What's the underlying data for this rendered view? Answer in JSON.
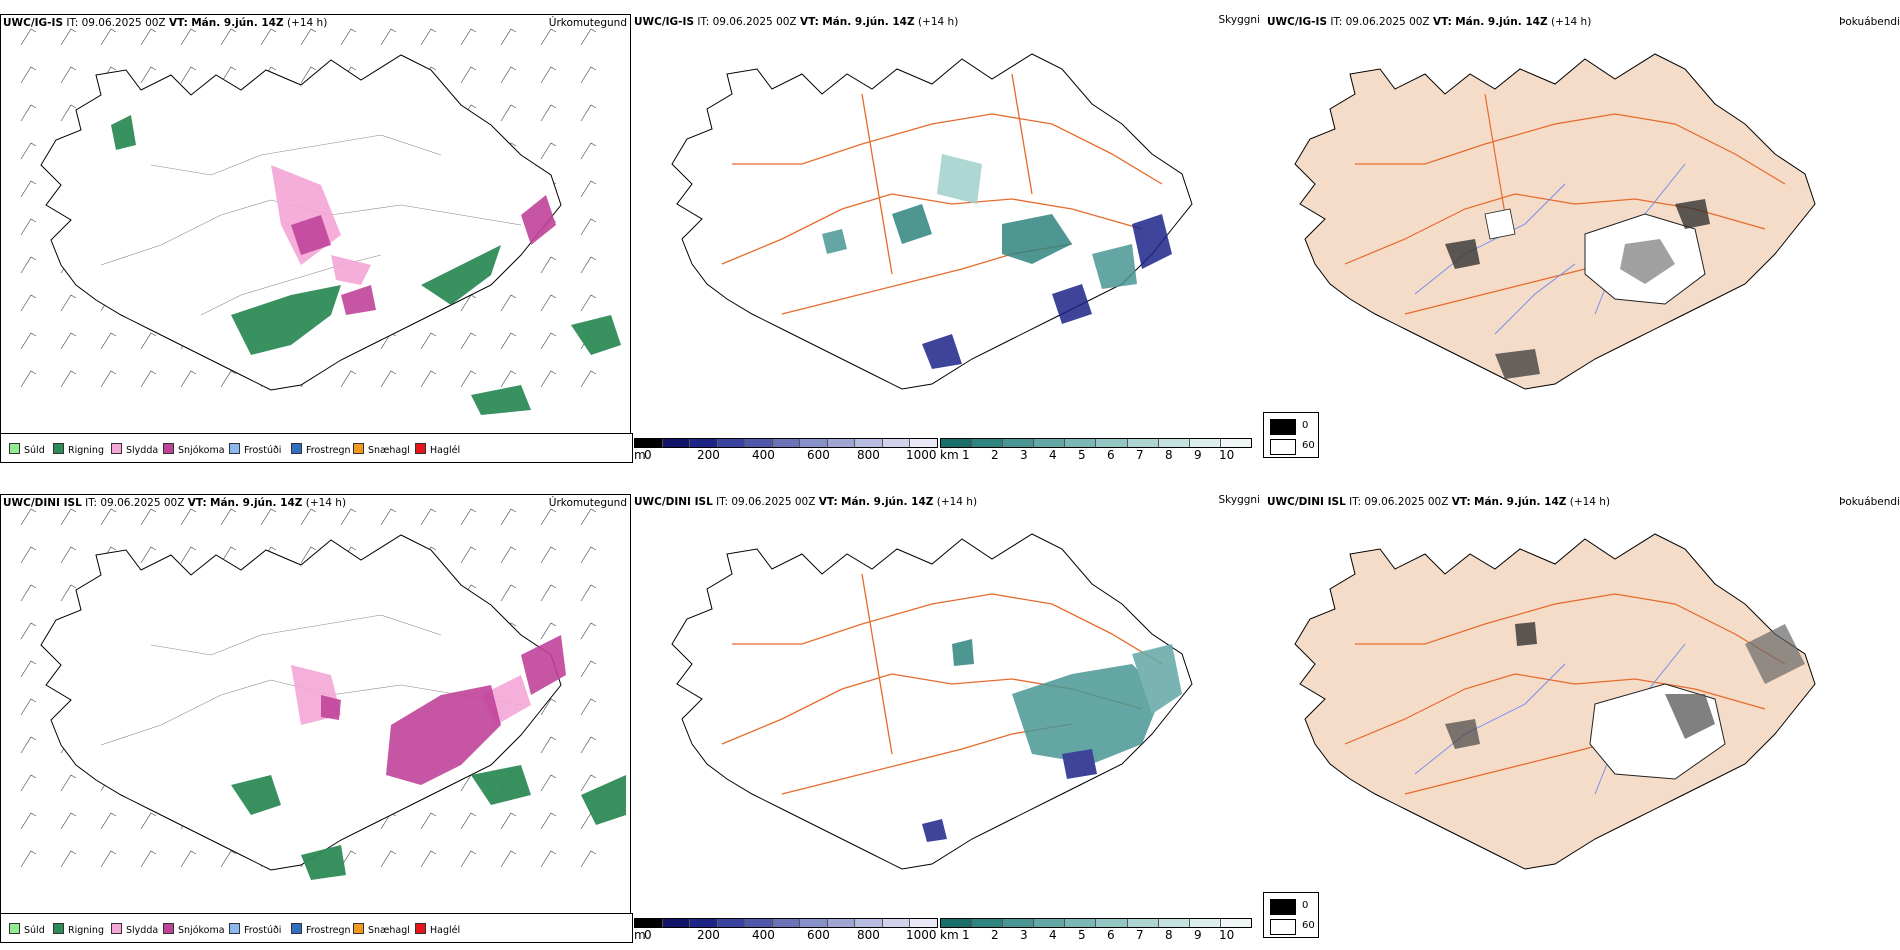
{
  "rows": [
    {
      "model": "UWC/IG-IS",
      "it_label": "IT:",
      "it_value": "09.06.2025 00Z",
      "vt_label": "VT:",
      "vt_value": "Mán. 9.jún. 14Z",
      "lead": "(+14 h)"
    },
    {
      "model": "UWC/DINI ISL",
      "it_label": "IT:",
      "it_value": "09.06.2025 00Z",
      "vt_label": "VT:",
      "vt_value": "Mán. 9.jún. 14Z",
      "lead": "(+14 h)"
    }
  ],
  "panel_names": {
    "precip": "Úrkomutegund",
    "visibility": "Skyggni",
    "fog": "Þokuábendi"
  },
  "precip_legend": [
    {
      "label": "Súld",
      "color": "#90ee90"
    },
    {
      "label": "Rigning",
      "color": "#2e8b57"
    },
    {
      "label": "Slydda",
      "color": "#f4a6d7"
    },
    {
      "label": "Snjókoma",
      "color": "#c0449a"
    },
    {
      "label": "Frostúði",
      "color": "#8ab8ef"
    },
    {
      "label": "Frostregn",
      "color": "#2f6fbf"
    },
    {
      "label": "Snæhagl",
      "color": "#f29a1f"
    },
    {
      "label": "Haglél",
      "color": "#e8141c"
    }
  ],
  "cloud_base_scale": {
    "unit": "m",
    "ticks": [
      "0",
      "200",
      "400",
      "600",
      "800",
      "1000"
    ],
    "colors": [
      "#000000",
      "#101468",
      "#1c2488",
      "#3a44a0",
      "#5058aa",
      "#6a72b8",
      "#8890c8",
      "#a0a6d4",
      "#b8bce0",
      "#d0d2ea",
      "#e8e8f6"
    ]
  },
  "visibility_scale": {
    "unit": "km",
    "ticks": [
      "1",
      "2",
      "3",
      "4",
      "5",
      "6",
      "7",
      "8",
      "9",
      "10"
    ],
    "colors": [
      "#1a6e6a",
      "#2f8480",
      "#489794",
      "#62a8a5",
      "#7bb8b5",
      "#94c7c4",
      "#acd5d2",
      "#c4e2df",
      "#dbeeed",
      "#f0f8f7"
    ]
  },
  "fog_legend": [
    {
      "label": "0",
      "color": "#000000"
    },
    {
      "label": "60",
      "color": "#ffffff"
    }
  ],
  "colors": {
    "land_fog": "#f5dcc8",
    "roads": "#e56b2c",
    "coast": "#000000",
    "rivers": "#6b8cef",
    "rain": "#2e8b57",
    "snow": "#c0449a",
    "sleet": "#f4a6d7",
    "cloud_teal": "#2f8480",
    "cloud_navy": "#1c2488"
  }
}
